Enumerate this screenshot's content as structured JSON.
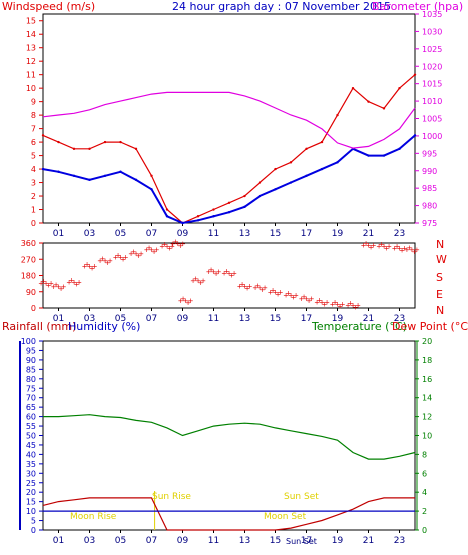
{
  "colors": {
    "wind": "#e00000",
    "gust": "#e00000",
    "avg": "#0000e0",
    "baro": "#e000e0",
    "direction": "#e00000",
    "rain": "#c00000",
    "humidity": "#0000c0",
    "temperature": "#008000",
    "dewpoint": "#e00000",
    "sun": "#e0d000",
    "frame": "#000000"
  },
  "chart_data": [
    {
      "type": "line",
      "title": "24 hour graph day : 07 November 2015",
      "left_label": "Windspeed (m/s)",
      "right_label": "Barometer (hpa)",
      "x_ticks": [
        "01",
        "03",
        "05",
        "07",
        "09",
        "11",
        "13",
        "15",
        "17",
        "19",
        "21",
        "23"
      ],
      "ylim_left": [
        0,
        15.5
      ],
      "yticks_left": [
        0,
        1,
        2,
        3,
        4,
        5,
        6,
        7,
        8,
        9,
        10,
        11,
        12,
        13,
        14,
        15
      ],
      "ylim_right": [
        975,
        1035
      ],
      "yticks_right": [
        975,
        980,
        985,
        990,
        995,
        1000,
        1005,
        1010,
        1015,
        1020,
        1025,
        1030,
        1035
      ],
      "x_hours": [
        0,
        1,
        2,
        3,
        4,
        5,
        6,
        7,
        8,
        9,
        10,
        11,
        12,
        13,
        14,
        15,
        16,
        17,
        18,
        19,
        20,
        21,
        22,
        23,
        24
      ],
      "series": [
        {
          "key": "gust",
          "axis": "left",
          "values": [
            6.5,
            6,
            5.5,
            5.5,
            6,
            6,
            5.5,
            3.5,
            1,
            0,
            0.5,
            1,
            1.5,
            2,
            3,
            4,
            4.5,
            5.5,
            6,
            8,
            10,
            9,
            8.5,
            10,
            11
          ]
        },
        {
          "key": "avg",
          "axis": "left",
          "values": [
            4,
            3.8,
            3.5,
            3.2,
            3.5,
            3.8,
            3.2,
            2.5,
            0.5,
            0,
            0.2,
            0.5,
            0.8,
            1.2,
            2,
            2.5,
            3,
            3.5,
            4,
            4.5,
            5.5,
            5,
            5,
            5.5,
            6.5
          ]
        },
        {
          "key": "baro",
          "axis": "right",
          "values": [
            1005.5,
            1006,
            1006.5,
            1007.5,
            1009,
            1010,
            1011,
            1012,
            1012.5,
            1012.5,
            1012.5,
            1012.5,
            1012.5,
            1011.5,
            1010,
            1008,
            1006,
            1004.5,
            1002,
            998,
            996.5,
            997,
            999,
            1002,
            1008
          ]
        }
      ]
    },
    {
      "type": "scatter",
      "right_label": [
        "N",
        "W",
        "S",
        "E",
        "N"
      ],
      "ylim": [
        0,
        360
      ],
      "yticks": [
        0,
        90,
        180,
        270,
        360
      ],
      "x_ticks": [
        "01",
        "03",
        "05",
        "07",
        "09",
        "11",
        "13",
        "15",
        "17",
        "19",
        "21",
        "23"
      ],
      "x_hours": [
        0.2,
        1,
        2,
        3,
        4,
        5,
        6,
        7,
        8,
        8.7,
        9.2,
        10,
        11,
        12,
        13,
        14,
        15,
        16,
        17,
        18,
        19,
        20,
        21,
        22,
        23,
        23.8
      ],
      "values": [
        135,
        115,
        140,
        230,
        260,
        280,
        300,
        320,
        340,
        355,
        40,
        150,
        200,
        190,
        120,
        110,
        85,
        70,
        50,
        30,
        20,
        15,
        345,
        340,
        330,
        320
      ]
    },
    {
      "type": "line",
      "left_label": "Rainfall (mm)",
      "left_label2": "Humidity (%)",
      "right_label": "Temperature (°C)",
      "right_label2": "Dew Point (°C)",
      "x_ticks": [
        "01",
        "03",
        "05",
        "07",
        "09",
        "11",
        "13",
        "15",
        "17",
        "19",
        "21",
        "23"
      ],
      "ylim_left": [
        0,
        100
      ],
      "yticks_left": [
        0,
        5,
        10,
        15,
        20,
        25,
        30,
        35,
        40,
        45,
        50,
        55,
        60,
        65,
        70,
        75,
        80,
        85,
        90,
        95,
        100
      ],
      "ylim_right": [
        0,
        20
      ],
      "yticks_right": [
        0,
        2,
        4,
        6,
        8,
        10,
        12,
        14,
        16,
        18,
        20
      ],
      "annotations": [
        "Sun Rise",
        "Sun Set",
        "Moon Rise",
        "Moon Set",
        "Sun Set"
      ],
      "x_hours": [
        0,
        1,
        2,
        3,
        4,
        5,
        6,
        7,
        8,
        9,
        10,
        11,
        12,
        13,
        14,
        15,
        16,
        17,
        18,
        19,
        20,
        21,
        22,
        23,
        24
      ],
      "series": [
        {
          "key": "temperature",
          "axis": "right",
          "values": [
            12,
            12,
            12.1,
            12.2,
            12,
            11.9,
            11.6,
            11.4,
            10.8,
            10,
            10.5,
            11,
            11.2,
            11.3,
            11.2,
            10.8,
            10.5,
            10.2,
            9.9,
            9.5,
            8.2,
            7.5,
            7.5,
            7.8,
            8.2
          ]
        },
        {
          "key": "rain",
          "axis": "left",
          "values": [
            13,
            15,
            16,
            17,
            17,
            17,
            17,
            17,
            0,
            0,
            0,
            0,
            0,
            0,
            0,
            0,
            1,
            3,
            5,
            8,
            11,
            15,
            17,
            17,
            17
          ]
        },
        {
          "key": "humidity",
          "axis": "left",
          "values": [
            10,
            10,
            10,
            10,
            10,
            10,
            10,
            10,
            10,
            10,
            10,
            10,
            10,
            10,
            10,
            10,
            10,
            10,
            10,
            10,
            10,
            10,
            10,
            10,
            10
          ]
        }
      ]
    }
  ]
}
